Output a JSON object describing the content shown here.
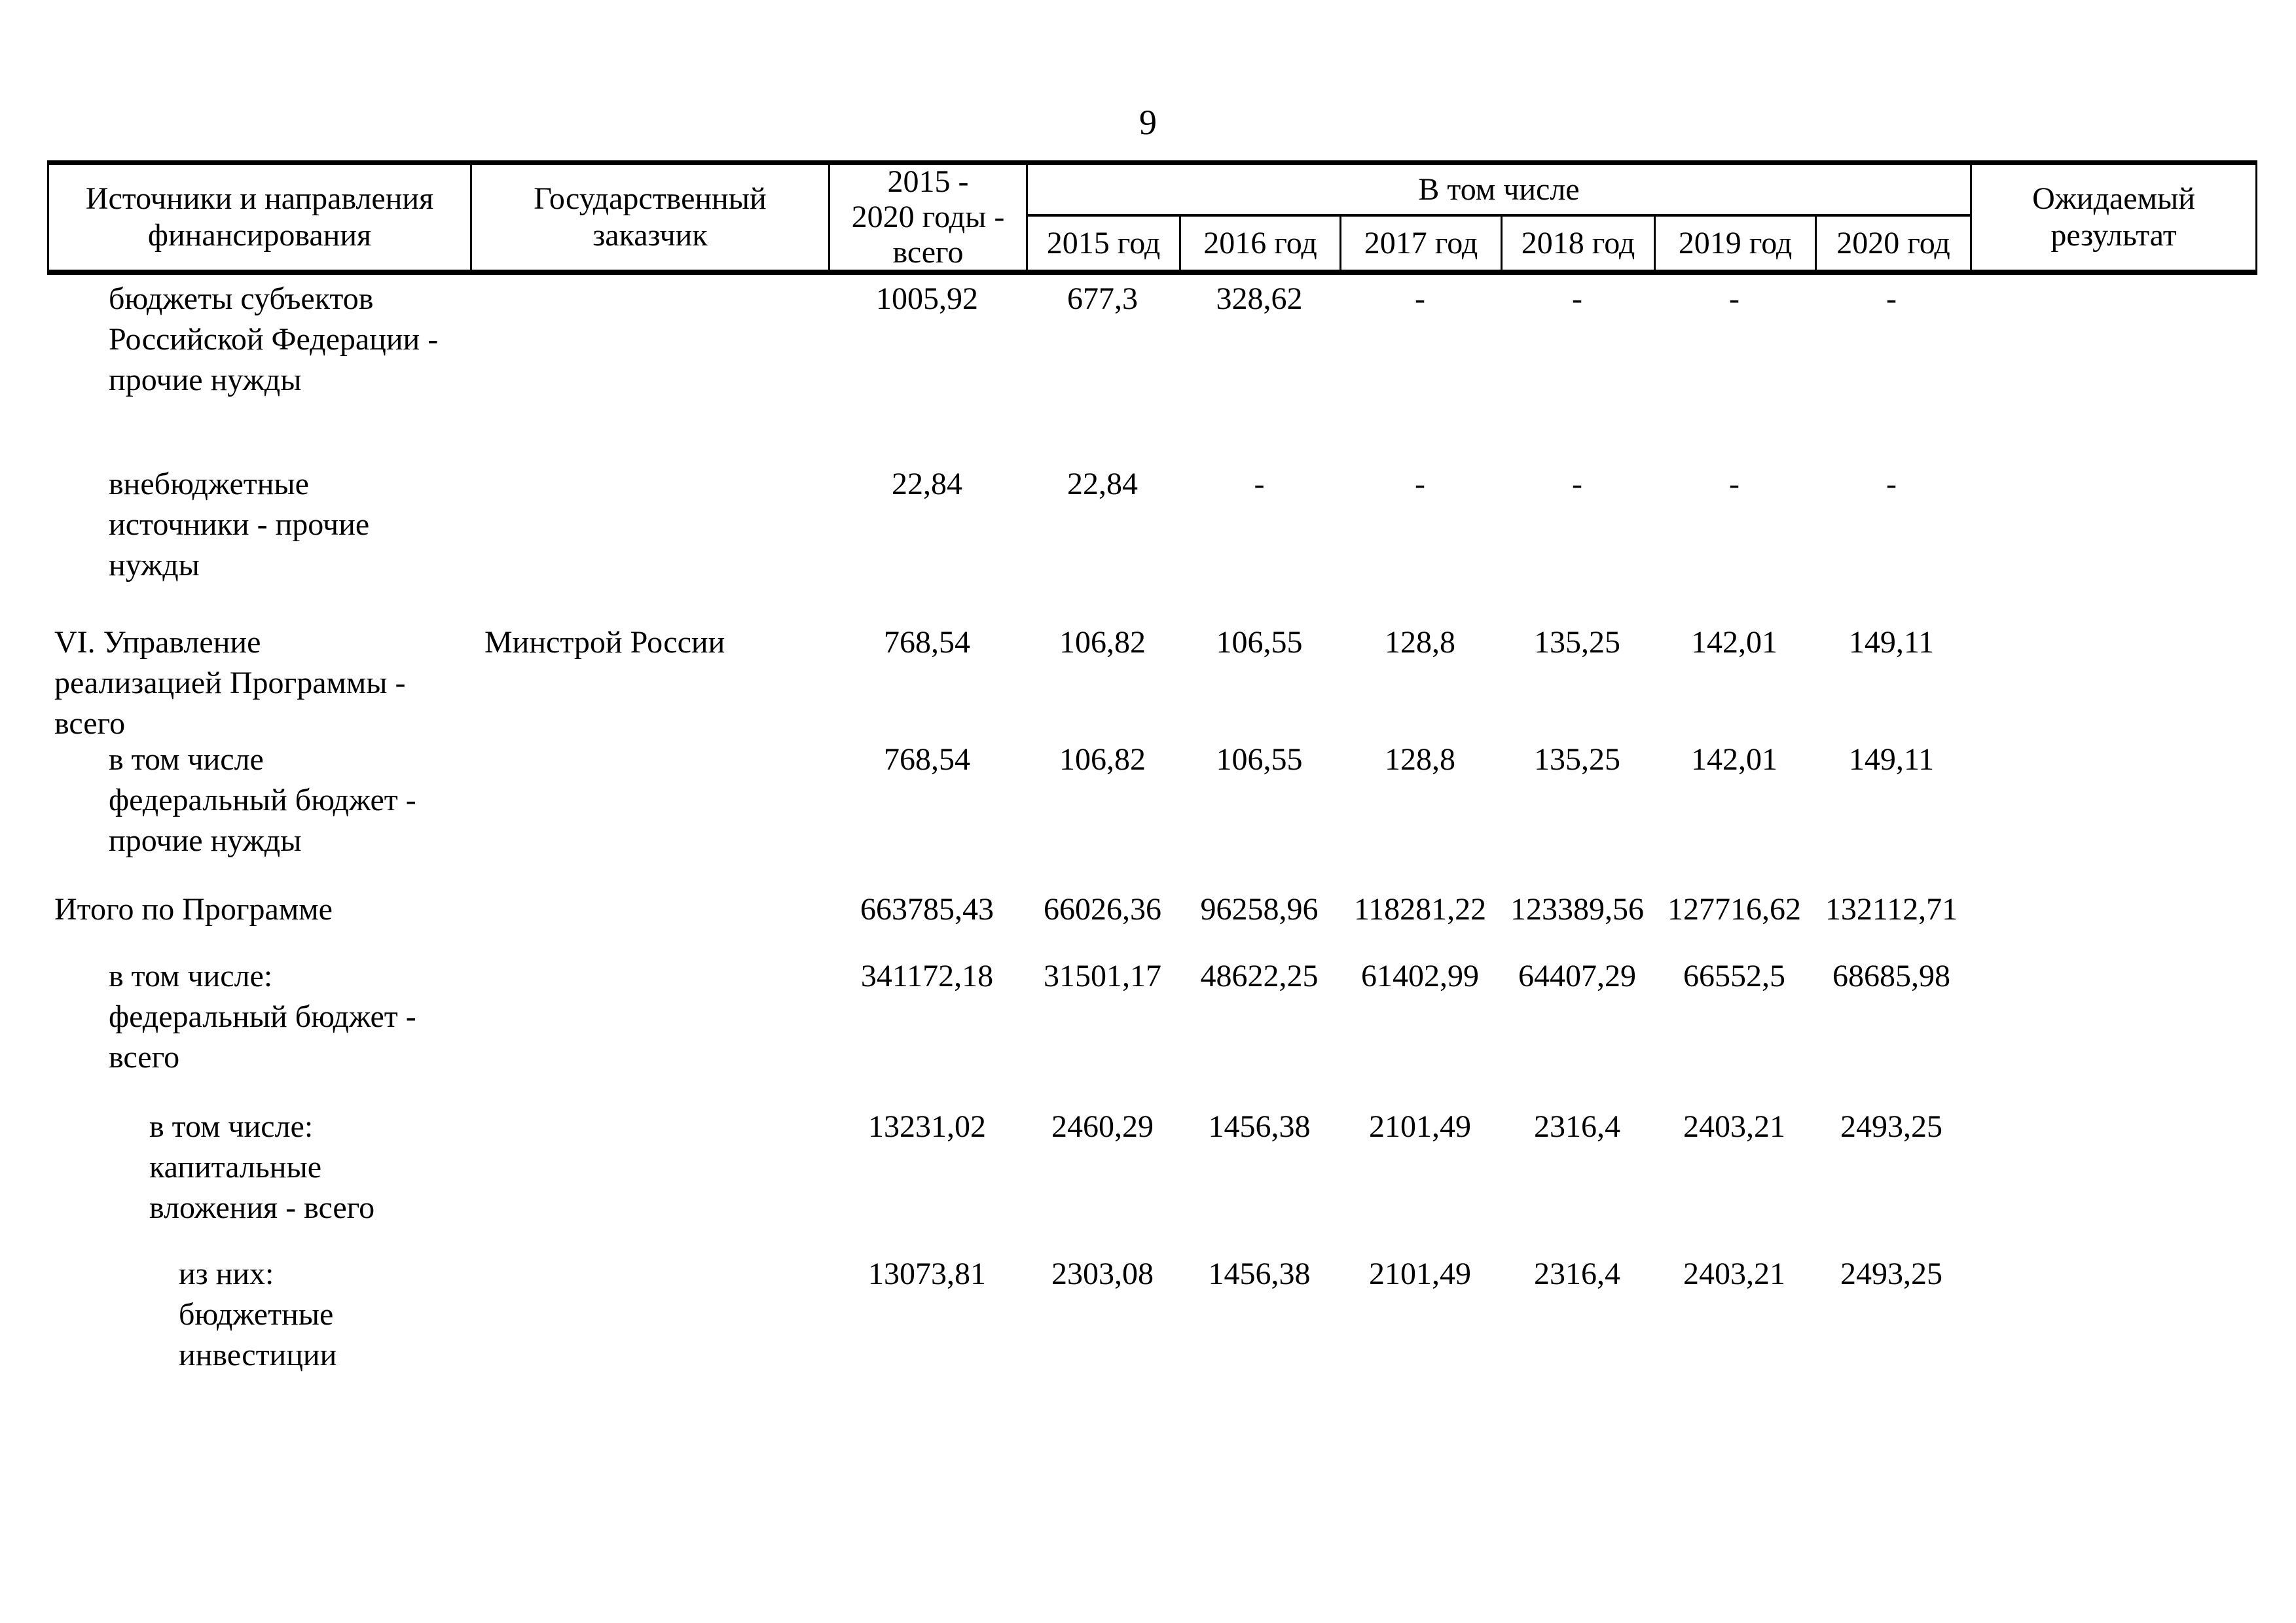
{
  "page": {
    "number": "9"
  },
  "table": {
    "header": {
      "sources": "Источники и направления\nфинансирования",
      "customer": "Государственный\nзаказчик",
      "total": "2015 -\n2020 годы -\nвсего",
      "including": "В том числе",
      "years": [
        "2015 год",
        "2016 год",
        "2017 год",
        "2018 год",
        "2019 год",
        "2020 год"
      ],
      "result": "Ожидаемый\nрезультат"
    },
    "rows": [
      {
        "label": "бюджеты субъектов\nРоссийской Федерации -\nпрочие нужды",
        "customer": "",
        "values": [
          "1005,92",
          "677,3",
          "328,62",
          "-",
          "-",
          "-",
          "-"
        ],
        "result": ""
      },
      {
        "label": "внебюджетные\nисточники - прочие\nнужды",
        "customer": "",
        "values": [
          "22,84",
          "22,84",
          "-",
          "-",
          "-",
          "-",
          "-"
        ],
        "result": ""
      },
      {
        "label": "VI. Управление\nреализацией Программы -\nвсего",
        "customer": "Минстрой России",
        "values": [
          "768,54",
          "106,82",
          "106,55",
          "128,8",
          "135,25",
          "142,01",
          "149,11"
        ],
        "result": ""
      },
      {
        "label": "в том числе\nфедеральный бюджет -\nпрочие нужды",
        "customer": "",
        "values": [
          "768,54",
          "106,82",
          "106,55",
          "128,8",
          "135,25",
          "142,01",
          "149,11"
        ],
        "result": ""
      },
      {
        "label": "Итого по Программе",
        "customer": "",
        "values": [
          "663785,43",
          "66026,36",
          "96258,96",
          "118281,22",
          "123389,56",
          "127716,62",
          "132112,71"
        ],
        "result": ""
      },
      {
        "label": "в том числе:\nфедеральный бюджет -\nвсего",
        "customer": "",
        "values": [
          "341172,18",
          "31501,17",
          "48622,25",
          "61402,99",
          "64407,29",
          "66552,5",
          "68685,98"
        ],
        "result": ""
      },
      {
        "label": "в том числе:\nкапитальные\nвложения - всего",
        "customer": "",
        "values": [
          "13231,02",
          "2460,29",
          "1456,38",
          "2101,49",
          "2316,4",
          "2403,21",
          "2493,25"
        ],
        "result": ""
      },
      {
        "label": "из них:\nбюджетные\nинвестиции",
        "customer": "",
        "values": [
          "13073,81",
          "2303,08",
          "1456,38",
          "2101,49",
          "2316,4",
          "2403,21",
          "2493,25"
        ],
        "result": ""
      }
    ]
  }
}
